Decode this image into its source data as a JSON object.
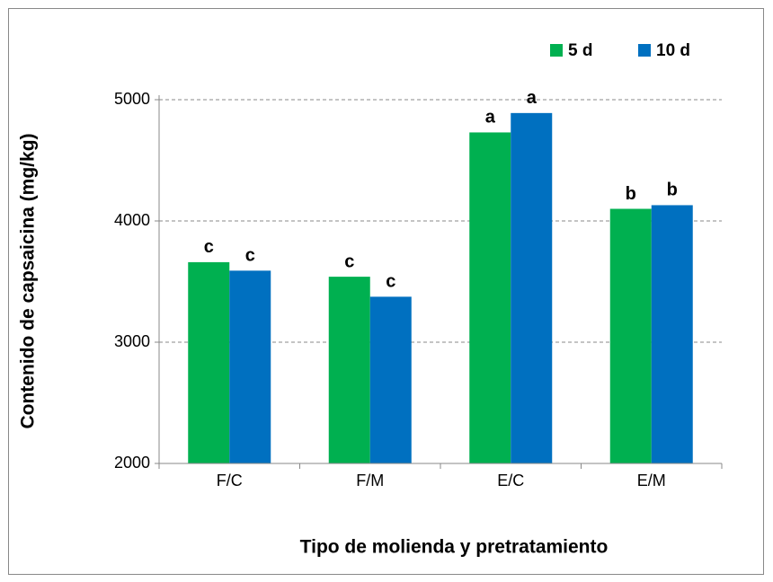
{
  "chart_data": {
    "type": "bar",
    "x_label": "Tipo de molienda y pretratamiento",
    "y_label": "Contenido de capsaicina (mg/kg)",
    "categories": [
      "F/C",
      "F/M",
      "E/C",
      "E/M"
    ],
    "series": [
      {
        "name": "5 d",
        "color": "#00b050",
        "values": [
          3660,
          3540,
          4730,
          4100
        ],
        "letters": [
          "c",
          "c",
          "a",
          "b"
        ]
      },
      {
        "name": "10 d",
        "color": "#0070c0",
        "values": [
          3590,
          3375,
          4890,
          4130
        ],
        "letters": [
          "c",
          "c",
          "a",
          "b"
        ]
      }
    ],
    "ylim": [
      2000,
      5000
    ],
    "yticks": [
      2000,
      3000,
      4000,
      5000
    ],
    "grid": true,
    "legend": "top-right"
  }
}
